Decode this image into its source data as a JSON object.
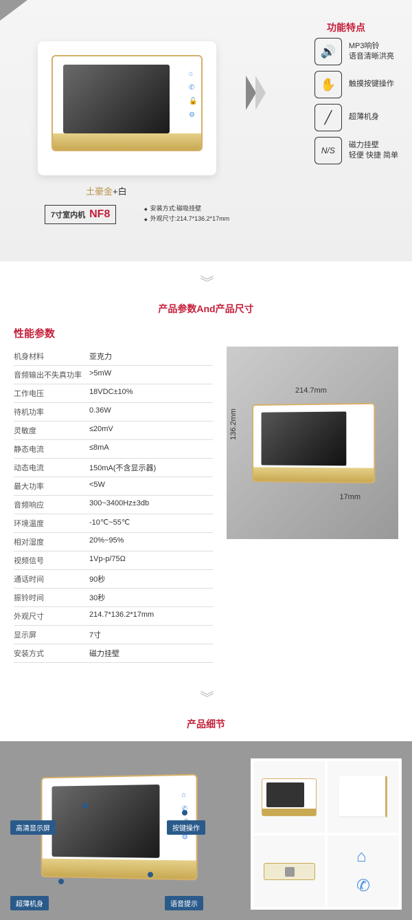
{
  "colors": {
    "accent": "#c41e3a",
    "gold": "#c9a952",
    "blue": "#2a5a8a"
  },
  "hero": {
    "product_name_gold": "土豪金",
    "product_name_plus": "+",
    "product_name_white": "白",
    "model_label": "7寸室内机",
    "model_code": "NF8",
    "install_spec": "安装方式:磁吸挂壁",
    "size_spec": "外观尺寸:214.7*136.2*17mm",
    "features_title": "功能特点",
    "features": [
      {
        "icon": "🔊",
        "line1": "MP3响铃",
        "line2": "语音清晰洪亮"
      },
      {
        "icon": "✋",
        "line1": "触摸按键操作",
        "line2": ""
      },
      {
        "icon": "╱",
        "line1": "超薄机身",
        "line2": ""
      },
      {
        "icon": "N/S",
        "line1": "磁力挂壁",
        "line2": "轻便 快捷 简单"
      }
    ]
  },
  "section2_title": "产品参数And产品尺寸",
  "specs": {
    "heading": "性能参数",
    "rows": [
      {
        "k": "机身材料",
        "v": "亚克力"
      },
      {
        "k": "音频输出不失真功率",
        "v": ">5mW"
      },
      {
        "k": "工作电压",
        "v": "18VDC±10%"
      },
      {
        "k": "待机功率",
        "v": "0.36W"
      },
      {
        "k": "灵敏度",
        "v": "≤20mV"
      },
      {
        "k": "静态电流",
        "v": "≤8mA"
      },
      {
        "k": "动态电流",
        "v": "150mA(不含显示器)"
      },
      {
        "k": "最大功率",
        "v": "<5W"
      },
      {
        "k": "音频响应",
        "v": "300~3400Hz±3db"
      },
      {
        "k": "环境温度",
        "v": "-10℃~55℃"
      },
      {
        "k": "相对湿度",
        "v": "20%~95%"
      },
      {
        "k": "视频信号",
        "v": "1Vp-p/75Ω"
      },
      {
        "k": "通话时间",
        "v": "90秒"
      },
      {
        "k": "振铃时间",
        "v": "30秒"
      },
      {
        "k": "外观尺寸",
        "v": "214.7*136.2*17mm"
      },
      {
        "k": "显示屏",
        "v": "7寸"
      },
      {
        "k": "安装方式",
        "v": "磁力挂壁"
      }
    ],
    "dim_w": "214.7mm",
    "dim_h": "136.2mm",
    "dim_d": "17mm"
  },
  "section3_title": "产品细节",
  "callouts": {
    "c1": "高清显示屏",
    "c2": "超薄机身",
    "c3": "按键操作",
    "c4": "语音提示"
  }
}
